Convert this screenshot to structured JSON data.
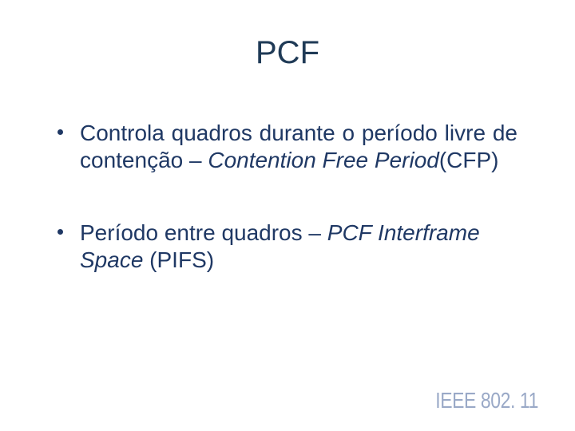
{
  "slide": {
    "title": "PCF",
    "bullets": [
      {
        "pre": "Controla quadros durante o período livre de contenção – ",
        "italic": "Contention Free Period",
        "post": "(CFP)",
        "justify": true
      },
      {
        "pre": "Período entre quadros – ",
        "italic": "PCF Interframe Space",
        "post": " (PIFS)",
        "justify": false
      }
    ],
    "footer_brand": "IEEE 802. 11"
  },
  "style": {
    "title_color": "#1f3a56",
    "text_color": "#1f3864",
    "brand_color": "#9aa9c7",
    "background": "#ffffff",
    "title_fontsize": 40,
    "body_fontsize": 28,
    "brand_fontsize": 28
  }
}
